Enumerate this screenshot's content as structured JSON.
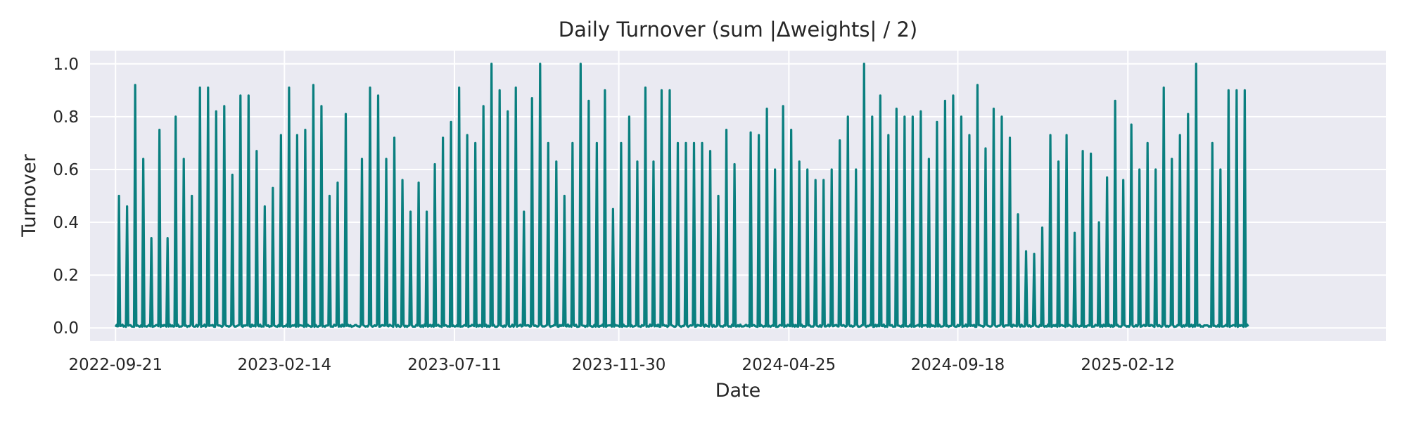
{
  "chart_data": {
    "type": "line",
    "title": "Daily Turnover (sum |Δweights| / 2)",
    "xlabel": "Date",
    "ylabel": "Turnover",
    "ylim": [
      -0.05,
      1.05
    ],
    "xlim": [
      "2022-08-30",
      "2025-09-23"
    ],
    "grid": true,
    "color": "#0a7f7f",
    "background": "#eaeaf2",
    "x_ticks": [
      "2022-09-21",
      "2023-02-14",
      "2023-07-11",
      "2023-11-30",
      "2024-04-25",
      "2024-09-18",
      "2025-02-12"
    ],
    "y_ticks": [
      0.0,
      0.2,
      0.4,
      0.6,
      0.8,
      1.0
    ],
    "y_tick_labels": [
      "0.0",
      "0.2",
      "0.4",
      "0.6",
      "0.8",
      "1.0"
    ],
    "series": [
      {
        "spike_dates": [
          "2022-09-24",
          "2022-10-01",
          "2022-10-08",
          "2022-10-15",
          "2022-10-22",
          "2022-10-29",
          "2022-11-05",
          "2022-11-12",
          "2022-11-19",
          "2022-11-26",
          "2022-12-03",
          "2022-12-10",
          "2022-12-17",
          "2022-12-24",
          "2022-12-31",
          "2023-01-07",
          "2023-01-14",
          "2023-01-21",
          "2023-01-28",
          "2023-02-04",
          "2023-02-11",
          "2023-02-18",
          "2023-02-25",
          "2023-03-04",
          "2023-03-11",
          "2023-03-18",
          "2023-03-25",
          "2023-04-01",
          "2023-04-08",
          "2023-04-22",
          "2023-04-29",
          "2023-05-06",
          "2023-05-13",
          "2023-05-20",
          "2023-05-27",
          "2023-06-03",
          "2023-06-10",
          "2023-06-17",
          "2023-06-24",
          "2023-07-01",
          "2023-07-08",
          "2023-07-15",
          "2023-07-22",
          "2023-07-29",
          "2023-08-05",
          "2023-08-12",
          "2023-08-19",
          "2023-08-26",
          "2023-09-02",
          "2023-09-09",
          "2023-09-16",
          "2023-09-23",
          "2023-09-30",
          "2023-10-07",
          "2023-10-14",
          "2023-10-21",
          "2023-10-28",
          "2023-11-04",
          "2023-11-11",
          "2023-11-18",
          "2023-11-25",
          "2023-12-02",
          "2023-12-09",
          "2023-12-16",
          "2023-12-23",
          "2023-12-30",
          "2024-01-06",
          "2024-01-13",
          "2024-01-20",
          "2024-01-27",
          "2024-02-03",
          "2024-02-10",
          "2024-02-17",
          "2024-02-24",
          "2024-03-02",
          "2024-03-09",
          "2024-03-23",
          "2024-03-30",
          "2024-04-06",
          "2024-04-13",
          "2024-04-20",
          "2024-04-27",
          "2024-05-04",
          "2024-05-11",
          "2024-05-18",
          "2024-05-25",
          "2024-06-01",
          "2024-06-08",
          "2024-06-15",
          "2024-06-22",
          "2024-06-29",
          "2024-07-06",
          "2024-07-13",
          "2024-07-20",
          "2024-07-27",
          "2024-08-03",
          "2024-08-10",
          "2024-08-17",
          "2024-08-24",
          "2024-08-31",
          "2024-09-07",
          "2024-09-14",
          "2024-09-21",
          "2024-09-28",
          "2024-10-05",
          "2024-10-12",
          "2024-10-19",
          "2024-10-26",
          "2024-11-02",
          "2024-11-09",
          "2024-11-16",
          "2024-11-23",
          "2024-11-30",
          "2024-12-07",
          "2024-12-14",
          "2024-12-21",
          "2024-12-28",
          "2025-01-04",
          "2025-01-11",
          "2025-01-18",
          "2025-01-25",
          "2025-02-01",
          "2025-02-08",
          "2025-02-15",
          "2025-02-22",
          "2025-03-01",
          "2025-03-08",
          "2025-03-15",
          "2025-03-22",
          "2025-03-29",
          "2025-04-05",
          "2025-04-12",
          "2025-04-26",
          "2025-05-03",
          "2025-05-10",
          "2025-05-17",
          "2025-05-24"
        ],
        "spike_values": [
          0.5,
          0.46,
          0.92,
          0.64,
          0.34,
          0.75,
          0.34,
          0.8,
          0.64,
          0.5,
          0.91,
          0.91,
          0.82,
          0.84,
          0.58,
          0.88,
          0.88,
          0.67,
          0.46,
          0.53,
          0.73,
          0.91,
          0.73,
          0.75,
          0.92,
          0.84,
          0.5,
          0.55,
          0.81,
          0.64,
          0.91,
          0.88,
          0.64,
          0.72,
          0.56,
          0.44,
          0.55,
          0.44,
          0.62,
          0.72,
          0.78,
          0.91,
          0.73,
          0.7,
          0.84,
          1.0,
          0.9,
          0.82,
          0.91,
          0.44,
          0.87,
          1.0,
          0.7,
          0.63,
          0.5,
          0.7,
          1.0,
          0.86,
          0.7,
          0.9,
          0.45,
          0.7,
          0.8,
          0.63,
          0.91,
          0.63,
          0.9,
          0.9,
          0.7,
          0.7,
          0.7,
          0.7,
          0.67,
          0.5,
          0.75,
          0.62,
          0.74,
          0.73,
          0.83,
          0.6,
          0.84,
          0.75,
          0.63,
          0.6,
          0.56,
          0.56,
          0.6,
          0.71,
          0.8,
          0.6,
          1.0,
          0.8,
          0.88,
          0.73,
          0.83,
          0.8,
          0.8,
          0.82,
          0.64,
          0.78,
          0.86,
          0.88,
          0.8,
          0.73,
          0.92,
          0.68,
          0.83,
          0.8,
          0.72,
          0.43,
          0.29,
          0.28,
          0.38,
          0.73,
          0.63,
          0.73,
          0.36,
          0.67,
          0.66,
          0.4,
          0.57,
          0.86,
          0.56,
          0.77,
          0.6,
          0.7,
          0.6,
          0.91,
          0.64,
          0.73,
          0.81,
          1.0,
          0.7,
          0.6,
          0.9,
          0.9,
          0.9
        ],
        "last_date": "2025-05-27"
      }
    ]
  }
}
